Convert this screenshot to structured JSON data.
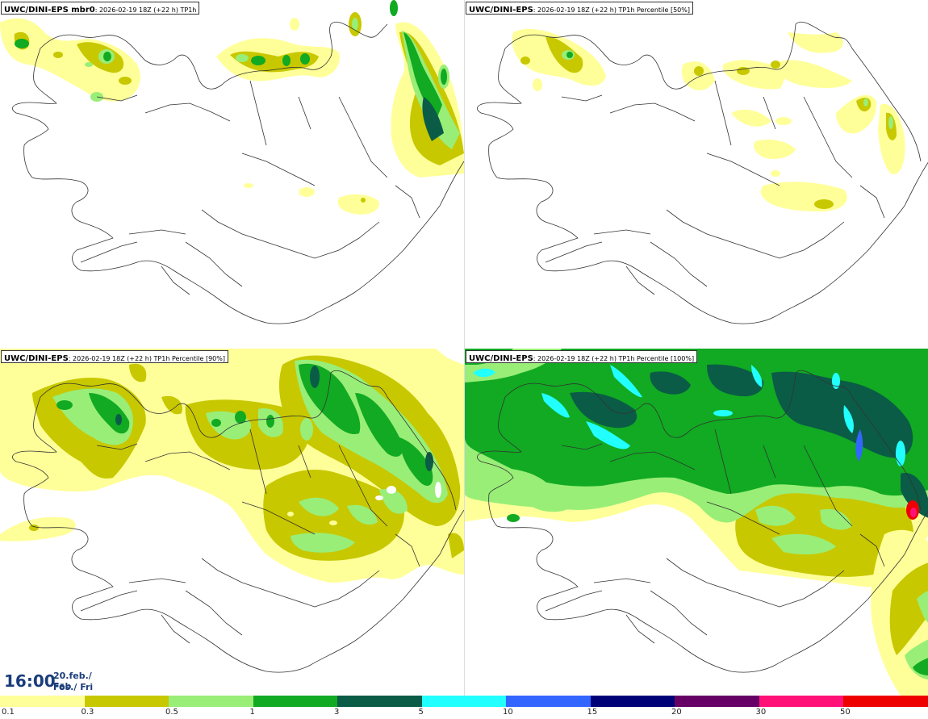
{
  "panels": [
    {
      "model": "UWC/DINI-EPS mbr0",
      "meta": "2026-02-19 18Z (+22 h) TP1h"
    },
    {
      "model": "UWC/DINI-EPS",
      "meta": "2026-02-19 18Z (+22 h) TP1h Percentile [50%]"
    },
    {
      "model": "UWC/DINI-EPS",
      "meta": "2026-02-19 18Z (+22 h) TP1h Percentile [90%]"
    },
    {
      "model": "UWC/DINI-EPS",
      "meta": "2026-02-19 18Z (+22 h) TP1h Percentile [100%]"
    }
  ],
  "valid_time": {
    "time": "16:00",
    "date_line1": "20.feb./ Feb",
    "date_line2": "Fös./ Fri"
  },
  "legend": {
    "labels": [
      "0.1",
      "0.3",
      "0.5",
      "1",
      "3",
      "5",
      "10",
      "15",
      "20",
      "30",
      "50"
    ],
    "colors": [
      "#ffff99",
      "#c8c800",
      "#99ee77",
      "#11aa22",
      "#0a5c46",
      "#22ffff",
      "#3366ff",
      "#000077",
      "#660066",
      "#ff1177",
      "#ee0000"
    ]
  },
  "field_colors": {
    "light_yellow": "#ffff99",
    "olive": "#c8c800",
    "light_green": "#99ee77",
    "green": "#11aa22",
    "dark_green": "#0a5c46",
    "cyan": "#22ffff",
    "blue": "#3366ff"
  },
  "map_line_color": "#333333"
}
